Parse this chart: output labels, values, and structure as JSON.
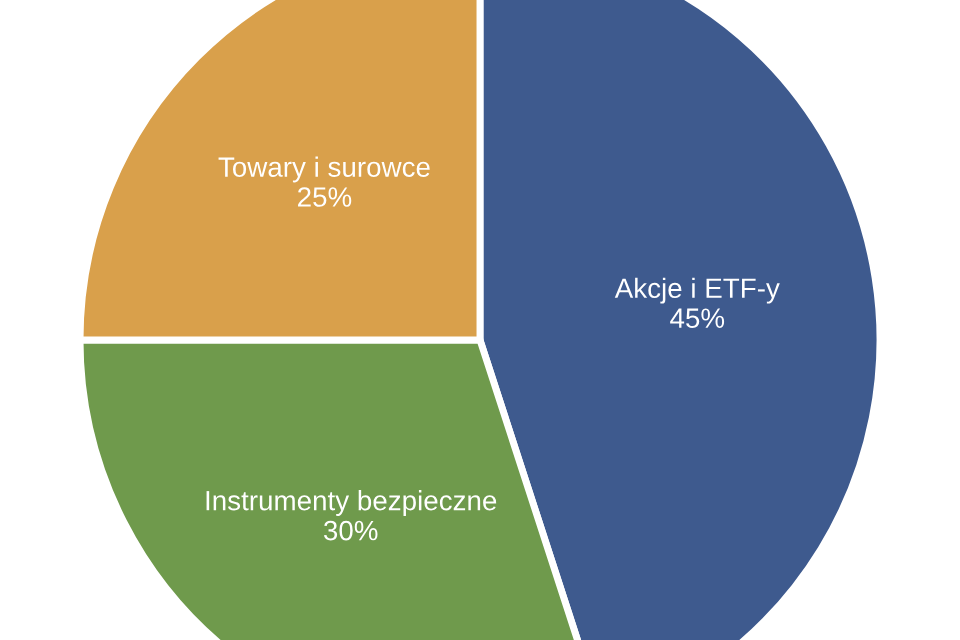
{
  "chart_data": {
    "type": "pie",
    "categories": [
      "Akcje i ETF-y",
      "Instrumenty bezpieczne",
      "Towary i surowce"
    ],
    "values": [
      45,
      30,
      25
    ],
    "value_labels": [
      "45%",
      "30%",
      "25%"
    ],
    "colors": [
      "#3e5a8e",
      "#6f9a4c",
      "#d9a04b"
    ]
  }
}
